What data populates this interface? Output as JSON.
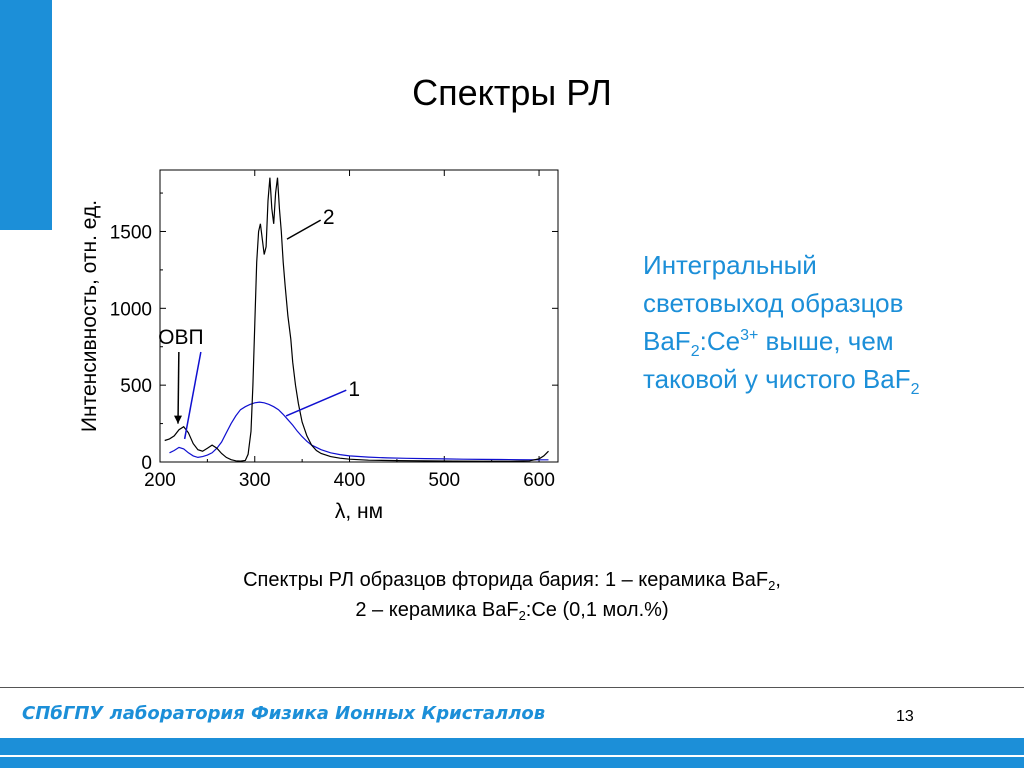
{
  "slide": {
    "title": "Спектры РЛ",
    "page_number": "13",
    "footer": "СПбГПУ лаборатория Физика Ионных Кристаллов",
    "colors": {
      "accent": "#1c8fd8",
      "series1": "#1010d0",
      "series2": "#000000"
    }
  },
  "side_text": {
    "line1": "Интегральный",
    "line2": "световыход образцов",
    "line3_a": "BaF",
    "line3_sub": "2",
    "line3_b": ":Ce",
    "line3_sup": "3+",
    "line3_c": " выше, чем",
    "line4_a": "таковой у чистого BaF",
    "line4_sub": "2"
  },
  "caption": {
    "line1_a": "Спектры РЛ образцов фторида бария: 1 – керамика BaF",
    "line1_sub": "2",
    "line1_b": ",",
    "line2_a": "2 – керамика BaF",
    "line2_sub": "2",
    "line2_b": ":Ce (0,1 мол.%)"
  },
  "chart_data": {
    "type": "line",
    "xlabel": "λ, нм",
    "ylabel": "Интенсивность, отн. ед.",
    "xlim": [
      200,
      620
    ],
    "ylim": [
      0,
      1900
    ],
    "xticks": [
      200,
      300,
      400,
      500,
      600
    ],
    "yticks": [
      0,
      500,
      1000,
      1500
    ],
    "grid": false,
    "annotations": [
      {
        "text": "ОВП",
        "x": 222,
        "y": 820
      },
      {
        "text": "2",
        "x": 378,
        "y": 1600
      },
      {
        "text": "1",
        "x": 405,
        "y": 480
      }
    ],
    "series": [
      {
        "label": "1",
        "color": "#1010d0",
        "x": [
          210,
          215,
          220,
          225,
          230,
          235,
          240,
          245,
          250,
          255,
          260,
          265,
          270,
          275,
          280,
          285,
          290,
          295,
          300,
          305,
          310,
          315,
          320,
          325,
          330,
          335,
          340,
          345,
          350,
          355,
          360,
          370,
          380,
          390,
          400,
          420,
          440,
          460,
          480,
          500,
          520,
          540,
          560,
          580,
          600,
          610
        ],
        "y": [
          60,
          75,
          95,
          85,
          60,
          40,
          30,
          35,
          45,
          60,
          90,
          130,
          190,
          250,
          300,
          340,
          360,
          375,
          385,
          390,
          385,
          375,
          360,
          340,
          310,
          275,
          240,
          200,
          165,
          135,
          110,
          80,
          60,
          48,
          40,
          32,
          27,
          24,
          22,
          20,
          18,
          17,
          16,
          15,
          14,
          14
        ]
      },
      {
        "label": "2",
        "color": "#000000",
        "x": [
          205,
          210,
          215,
          220,
          225,
          230,
          235,
          240,
          245,
          250,
          255,
          260,
          265,
          270,
          275,
          280,
          285,
          290,
          293,
          296,
          298,
          300,
          302,
          304,
          306,
          308,
          310,
          312,
          314,
          316,
          318,
          320,
          322,
          324,
          326,
          328,
          330,
          332,
          335,
          338,
          340,
          343,
          346,
          350,
          355,
          360,
          365,
          370,
          380,
          390,
          400,
          420,
          450,
          480,
          510,
          540,
          570,
          590,
          600,
          605,
          610
        ],
        "y": [
          140,
          150,
          170,
          210,
          230,
          190,
          120,
          80,
          70,
          90,
          110,
          90,
          55,
          30,
          15,
          8,
          6,
          10,
          50,
          200,
          500,
          900,
          1300,
          1500,
          1550,
          1450,
          1350,
          1400,
          1700,
          1850,
          1650,
          1550,
          1750,
          1850,
          1650,
          1500,
          1300,
          1150,
          950,
          800,
          650,
          500,
          380,
          260,
          170,
          110,
          75,
          55,
          35,
          25,
          18,
          12,
          9,
          7,
          6,
          5,
          5,
          8,
          20,
          40,
          70
        ]
      }
    ]
  }
}
